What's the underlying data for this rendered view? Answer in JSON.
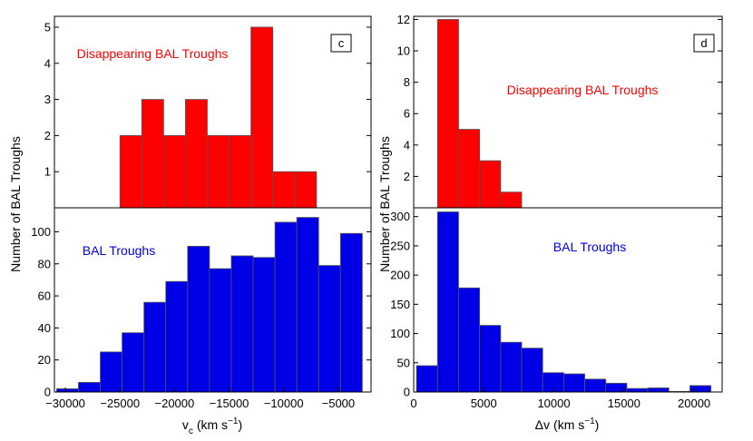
{
  "colors": {
    "red": "#ff0000",
    "blue": "#0000e6",
    "edge": "#555555",
    "frame": "#000000"
  },
  "chart_data": [
    {
      "type": "bar",
      "id": "c-top",
      "panel_label": "c",
      "annotation": "Disappearing BAL Troughs",
      "annotation_color": "#ff0000",
      "bar_color": "#ff0000",
      "bins": [
        [
          -25000,
          -23000
        ],
        [
          -23000,
          -21000
        ],
        [
          -21000,
          -19000
        ],
        [
          -19000,
          -17000
        ],
        [
          -17000,
          -15000
        ],
        [
          -15000,
          -13000
        ],
        [
          -13000,
          -11000
        ],
        [
          -11000,
          -9000
        ],
        [
          -9000,
          -7000
        ]
      ],
      "values": [
        2,
        3,
        2,
        3,
        2,
        2,
        5,
        1,
        1
      ],
      "xlim": [
        -31000,
        -2000
      ],
      "ylim": [
        0,
        5.3
      ],
      "yticks": [
        1,
        2,
        3,
        4,
        5
      ],
      "ylabel": "Number of BAL Troughs"
    },
    {
      "type": "bar",
      "id": "c-bottom",
      "annotation": "BAL Troughs",
      "annotation_color": "#0000e6",
      "bar_color": "#0000e6",
      "bins": [
        [
          -30800,
          -28800
        ],
        [
          -28800,
          -26800
        ],
        [
          -26800,
          -24800
        ],
        [
          -24800,
          -22800
        ],
        [
          -22800,
          -20800
        ],
        [
          -20800,
          -18800
        ],
        [
          -18800,
          -16800
        ],
        [
          -16800,
          -14800
        ],
        [
          -14800,
          -12800
        ],
        [
          -12800,
          -10800
        ],
        [
          -10800,
          -8800
        ],
        [
          -8800,
          -6800
        ],
        [
          -6800,
          -4800
        ],
        [
          -4800,
          -2800
        ]
      ],
      "values": [
        2,
        6,
        25,
        37,
        56,
        69,
        91,
        77,
        85,
        84,
        106,
        109,
        79,
        99
      ],
      "xlim": [
        -31000,
        -2000
      ],
      "ylim": [
        0,
        115
      ],
      "yticks": [
        0,
        20,
        40,
        60,
        80,
        100
      ],
      "xticks": [
        -30000,
        -25000,
        -20000,
        -15000,
        -10000,
        -5000
      ],
      "xtick_labels": [
        "−30000",
        "−25000",
        "−20000",
        "−15000",
        "−10000",
        "−5000"
      ],
      "xlabel_main": "v",
      "xlabel_sub": "c",
      "xlabel_units": "(km s",
      "xlabel_exp": "−1",
      "xlabel_close": ")"
    },
    {
      "type": "bar",
      "id": "d-top",
      "panel_label": "d",
      "annotation": "Disappearing BAL Troughs",
      "annotation_color": "#ff0000",
      "bar_color": "#ff0000",
      "bins": [
        [
          1700,
          3200
        ],
        [
          3200,
          4700
        ],
        [
          4700,
          6200
        ],
        [
          6200,
          7700
        ]
      ],
      "values": [
        12,
        5,
        3,
        1
      ],
      "xlim": [
        0,
        22000
      ],
      "ylim": [
        0,
        12.2
      ],
      "yticks": [
        2,
        4,
        6,
        8,
        10,
        12
      ],
      "ylabel": "Number of BAL Troughs"
    },
    {
      "type": "bar",
      "id": "d-bottom",
      "annotation": "BAL Troughs",
      "annotation_color": "#0000e6",
      "bar_color": "#0000e6",
      "bins": [
        [
          200,
          1700
        ],
        [
          1700,
          3200
        ],
        [
          3200,
          4700
        ],
        [
          4700,
          6200
        ],
        [
          6200,
          7700
        ],
        [
          7700,
          9200
        ],
        [
          9200,
          10700
        ],
        [
          10700,
          12200
        ],
        [
          12200,
          13700
        ],
        [
          13700,
          15200
        ],
        [
          15200,
          16700
        ],
        [
          16700,
          18200
        ],
        [
          18200,
          19700
        ],
        [
          19700,
          21200
        ]
      ],
      "values": [
        45,
        308,
        178,
        114,
        85,
        75,
        33,
        31,
        22,
        15,
        6,
        7,
        1,
        11
      ],
      "xlim": [
        0,
        22000
      ],
      "ylim": [
        0,
        315
      ],
      "yticks": [
        0,
        50,
        100,
        150,
        200,
        250,
        300
      ],
      "xticks": [
        0,
        5000,
        10000,
        15000,
        20000
      ],
      "xtick_labels": [
        "0",
        "5000",
        "10000",
        "15000",
        "20000"
      ],
      "xlabel_main": "Δv",
      "xlabel_sub": "",
      "xlabel_units": "(km s",
      "xlabel_exp": "−1",
      "xlabel_close": ")"
    }
  ]
}
